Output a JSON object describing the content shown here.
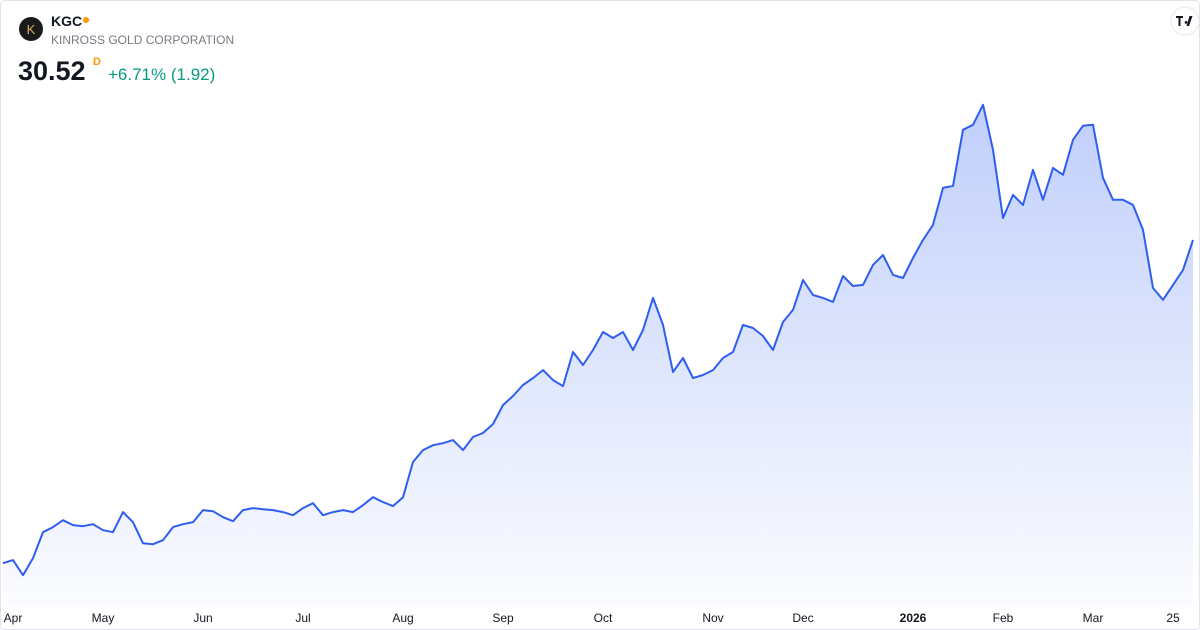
{
  "header": {
    "logo": "K",
    "ticker": "KGC",
    "company": "KINROSS GOLD CORPORATION",
    "price": "30.52",
    "interval": "D",
    "change": "+6.71% (1.92)"
  },
  "chart_data": {
    "type": "area",
    "color": "#2e5ef0",
    "categories": [
      null,
      "Apr",
      null,
      null,
      null,
      null,
      null,
      null,
      null,
      null,
      "May",
      null,
      null,
      null,
      null,
      null,
      null,
      null,
      null,
      null,
      "Jun",
      null,
      null,
      null,
      null,
      null,
      null,
      null,
      null,
      null,
      "Jul",
      null,
      null,
      null,
      null,
      null,
      null,
      null,
      null,
      null,
      "Aug",
      null,
      null,
      null,
      null,
      null,
      null,
      null,
      null,
      null,
      "Sep",
      null,
      null,
      null,
      null,
      null,
      null,
      null,
      null,
      null,
      "Oct",
      null,
      null,
      null,
      null,
      null,
      null,
      null,
      null,
      null,
      null,
      "Nov",
      null,
      null,
      null,
      null,
      null,
      null,
      null,
      null,
      "Dec",
      null,
      null,
      null,
      null,
      null,
      null,
      null,
      null,
      null,
      null,
      "2026",
      null,
      null,
      null,
      null,
      null,
      null,
      null,
      null,
      "Feb",
      null,
      null,
      null,
      null,
      null,
      null,
      null,
      null,
      "Mar",
      null,
      null,
      null,
      null,
      null,
      null,
      null,
      "25",
      null,
      null
    ],
    "values": [
      12.69,
      12.86,
      12.03,
      12.97,
      14.4,
      14.68,
      15.06,
      14.79,
      14.73,
      14.84,
      14.51,
      14.4,
      15.51,
      14.95,
      13.79,
      13.74,
      13.96,
      14.68,
      14.84,
      14.95,
      15.62,
      15.56,
      15.23,
      15.01,
      15.62,
      15.73,
      15.67,
      15.62,
      15.51,
      15.34,
      15.73,
      16.0,
      15.34,
      15.51,
      15.62,
      15.51,
      15.89,
      16.33,
      16.06,
      15.84,
      16.33,
      18.27,
      18.93,
      19.2,
      19.31,
      19.48,
      18.93,
      19.65,
      19.87,
      20.36,
      21.41,
      21.91,
      22.52,
      22.9,
      23.34,
      22.79,
      22.46,
      24.34,
      23.62,
      24.45,
      25.44,
      25.11,
      25.44,
      24.45,
      25.55,
      27.32,
      25.83,
      23.23,
      24.01,
      22.9,
      23.07,
      23.34,
      24.01,
      24.34,
      25.83,
      25.66,
      25.22,
      24.45,
      25.99,
      26.66,
      28.31,
      27.48,
      27.32,
      27.1,
      28.53,
      27.98,
      28.04,
      29.14,
      29.69,
      28.59,
      28.42,
      29.53,
      30.52,
      31.35,
      33.39,
      33.5,
      36.59,
      36.87,
      37.97,
      35.49,
      31.73,
      33.0,
      32.45,
      34.38,
      32.73,
      34.49,
      34.11,
      36.04,
      36.81,
      36.87,
      33.94,
      32.73,
      32.73,
      32.45,
      31.07,
      27.87,
      27.21,
      28.04,
      28.86,
      30.52
    ],
    "ylim": [
      10,
      40
    ]
  }
}
